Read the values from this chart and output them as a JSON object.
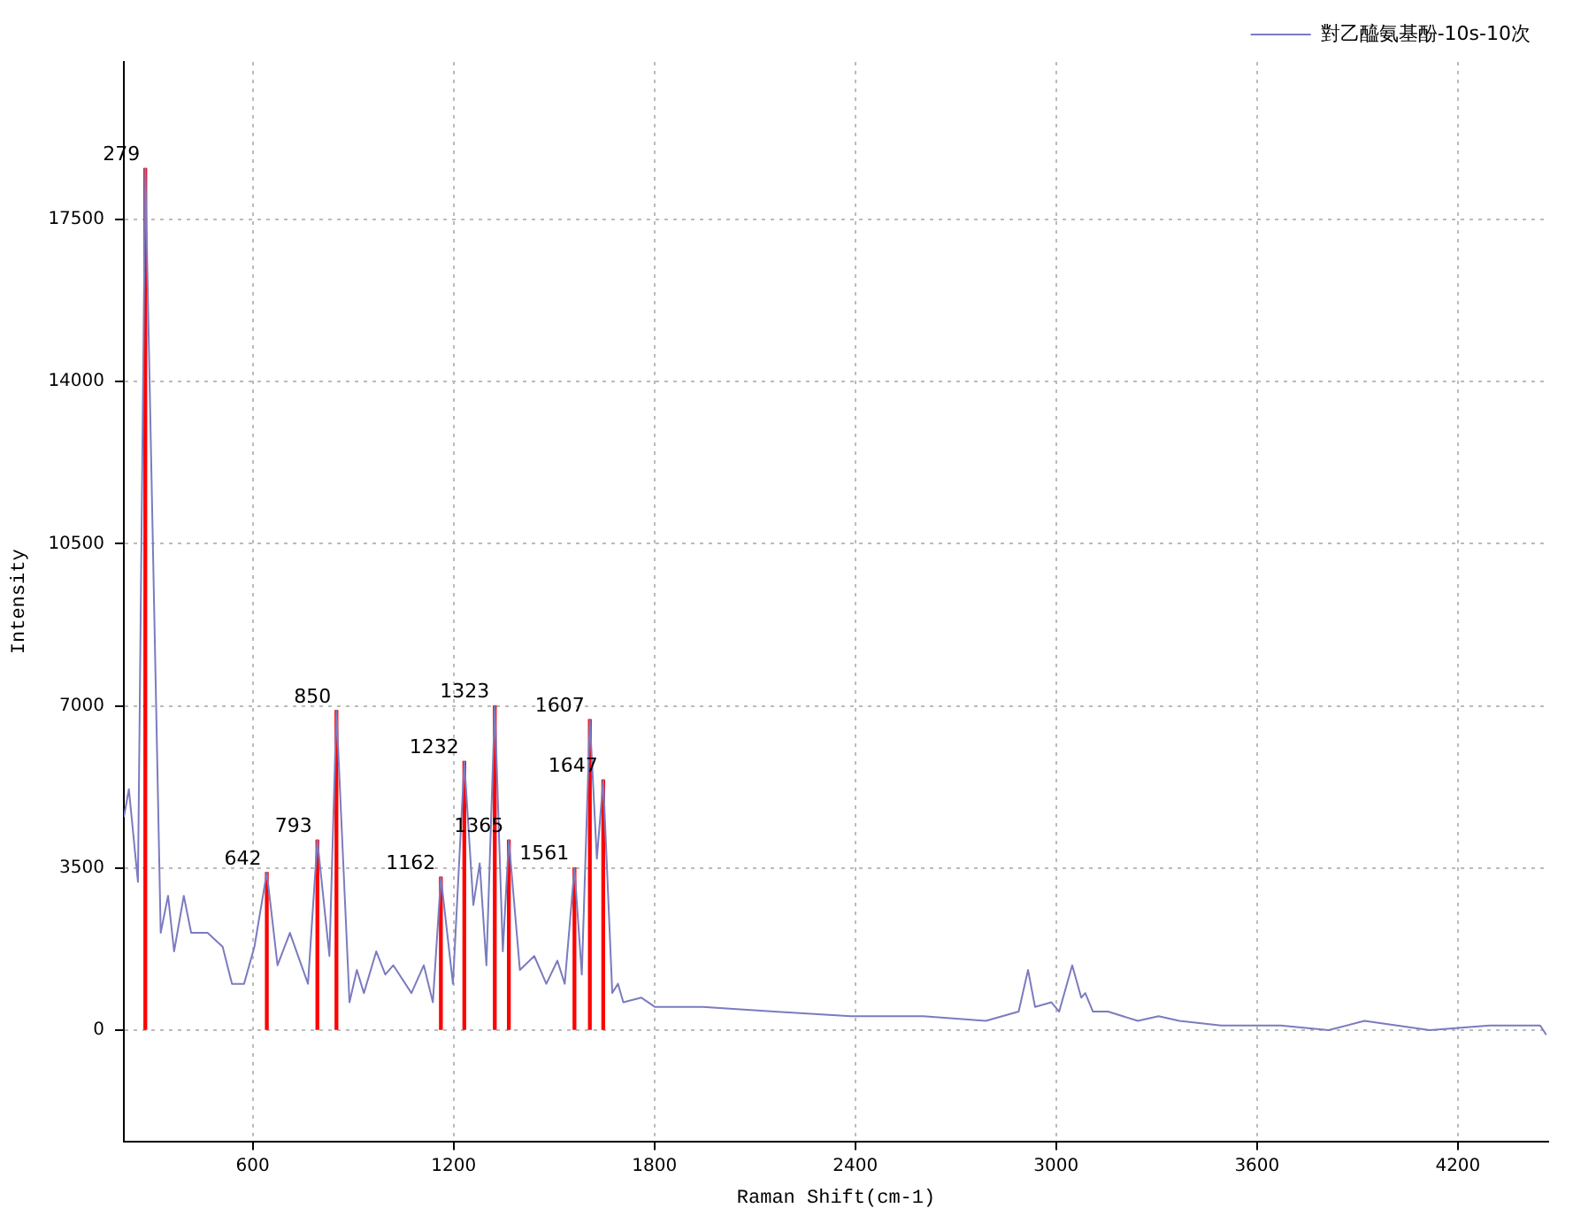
{
  "chart_data": {
    "type": "line",
    "xlabel": "Raman Shift(cm-1)",
    "ylabel": "Intensity",
    "legend": "top right",
    "grid": true,
    "marker": "none",
    "line_style": "solid",
    "xlim": [
      215,
      4470
    ],
    "ylim": [
      -2400,
      20900
    ],
    "xticks": [
      600,
      1200,
      1800,
      2400,
      3000,
      3600,
      4200
    ],
    "yticks": [
      0,
      3500,
      7000,
      10500,
      14000,
      17500
    ],
    "series": [
      {
        "name": "對乙醯氨基酚-10s-10次",
        "color": "#7b7bc0",
        "x": [
          215,
          230,
          257,
          279,
          325,
          347,
          365,
          394,
          416,
          465,
          510,
          538,
          574,
          605,
          642,
          674,
          711,
          765,
          793,
          829,
          850,
          889,
          911,
          932,
          969,
          996,
          1020,
          1074,
          1111,
          1138,
          1162,
          1198,
          1232,
          1259,
          1278,
          1298,
          1323,
          1347,
          1365,
          1398,
          1441,
          1477,
          1510,
          1532,
          1561,
          1583,
          1607,
          1628,
          1647,
          1674,
          1691,
          1707,
          1761,
          1802,
          1944,
          2158,
          2387,
          2603,
          2790,
          2888,
          2916,
          2937,
          2986,
          3009,
          3048,
          3075,
          3087,
          3110,
          3155,
          3244,
          3306,
          3368,
          3493,
          3671,
          3814,
          3921,
          4116,
          4295,
          4446,
          4464
        ],
        "values": [
          4600,
          5200,
          3200,
          18600,
          2100,
          2900,
          1700,
          2900,
          2100,
          2100,
          1800,
          1000,
          1000,
          1800,
          3400,
          1400,
          2100,
          1000,
          4100,
          1600,
          6900,
          600,
          1300,
          800,
          1700,
          1200,
          1400,
          800,
          1400,
          600,
          3300,
          1000,
          5800,
          2700,
          3600,
          1400,
          7000,
          1700,
          4100,
          1300,
          1600,
          1000,
          1500,
          1000,
          3500,
          1200,
          6700,
          3700,
          5400,
          800,
          1000,
          600,
          700,
          500,
          500,
          400,
          300,
          300,
          200,
          400,
          1300,
          500,
          600,
          400,
          1400,
          700,
          800,
          400,
          400,
          200,
          300,
          200,
          100,
          100,
          0,
          200,
          0,
          100,
          100,
          -100
        ]
      },
      {
        "type": "bar",
        "color": "#ff0000",
        "x": [
          279,
          642,
          793,
          850,
          1162,
          1232,
          1323,
          1365,
          1561,
          1607,
          1647
        ],
        "values": [
          18600,
          3400,
          4100,
          6900,
          3300,
          5800,
          7000,
          4100,
          3500,
          6700,
          5400
        ]
      }
    ],
    "annotations": [
      {
        "text": "279",
        "x": 279,
        "y": 18600
      },
      {
        "text": "642",
        "x": 642,
        "y": 3400
      },
      {
        "text": "793",
        "x": 793,
        "y": 4100
      },
      {
        "text": "850",
        "x": 850,
        "y": 6900
      },
      {
        "text": "1162",
        "x": 1162,
        "y": 3300
      },
      {
        "text": "1232",
        "x": 1232,
        "y": 5800
      },
      {
        "text": "1323",
        "x": 1323,
        "y": 7000
      },
      {
        "text": "1365",
        "x": 1365,
        "y": 4100
      },
      {
        "text": "1561",
        "x": 1561,
        "y": 3500
      },
      {
        "text": "1607",
        "x": 1607,
        "y": 6700
      },
      {
        "text": "1647",
        "x": 1647,
        "y": 5400
      }
    ]
  }
}
